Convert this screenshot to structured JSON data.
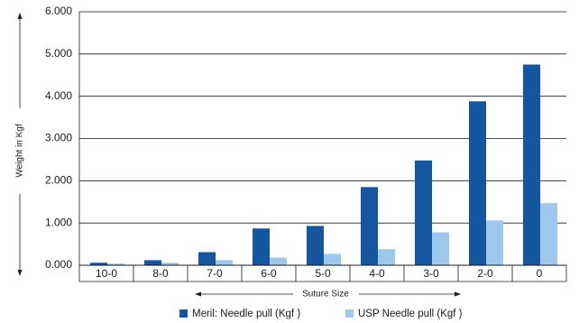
{
  "chart_data": {
    "type": "bar",
    "title": "",
    "xlabel": "Suture Size",
    "ylabel": "Weight in Kgf",
    "ylim": [
      0,
      6
    ],
    "yticks": [
      0,
      1,
      2,
      3,
      4,
      5,
      6
    ],
    "ytick_labels": [
      "0.000",
      "1.000",
      "2.000",
      "3.000",
      "4.000",
      "5.000",
      "6.000"
    ],
    "grid": true,
    "legend_position": "bottom",
    "categories": [
      "10-0",
      "8-0",
      "7-0",
      "6-0",
      "5-0",
      "4-0",
      "3-0",
      "2-0",
      "0"
    ],
    "series": [
      {
        "name": "Meril: Needle pull  (Kgf )",
        "color": "#1457a0",
        "values": [
          0.06,
          0.12,
          0.31,
          0.87,
          0.93,
          1.85,
          2.48,
          3.88,
          4.75
        ]
      },
      {
        "name": "USP Needle pull  (Kgf )",
        "color": "#9dc7eb",
        "values": [
          0.04,
          0.06,
          0.12,
          0.18,
          0.27,
          0.38,
          0.78,
          1.06,
          1.47
        ]
      }
    ]
  }
}
